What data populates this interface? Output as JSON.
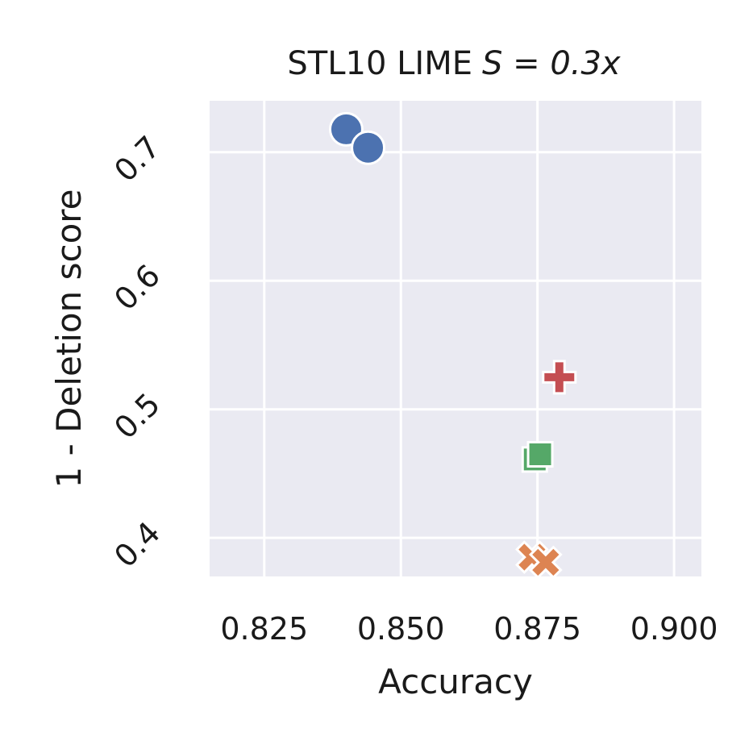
{
  "chart_data": {
    "type": "scatter",
    "title": "STL10 LIME",
    "title_formula": "S = 0.3x",
    "xlabel": "Accuracy",
    "ylabel": "1 - Deletion score",
    "xlim": [
      0.815,
      0.905
    ],
    "ylim": [
      0.37,
      0.74
    ],
    "xticks": [
      "0.825",
      "0.850",
      "0.875",
      "0.900"
    ],
    "yticks": [
      "0.4",
      "0.5",
      "0.6",
      "0.7"
    ],
    "grid": true,
    "background": "#eaeaf2",
    "gridColor": "#ffffff",
    "series": [
      {
        "marker": "circle",
        "color": "#4c72b0",
        "points": [
          {
            "x": 0.84,
            "y": 0.7178
          },
          {
            "x": 0.844,
            "y": 0.7035
          }
        ]
      },
      {
        "marker": "x",
        "color": "#dd8452",
        "points": [
          {
            "x": 0.874,
            "y": 0.385
          },
          {
            "x": 0.8765,
            "y": 0.381
          }
        ]
      },
      {
        "marker": "square",
        "color": "#55a868",
        "points": [
          {
            "x": 0.8745,
            "y": 0.461
          },
          {
            "x": 0.8755,
            "y": 0.465
          }
        ]
      },
      {
        "marker": "plus",
        "color": "#c44e52",
        "points": [
          {
            "x": 0.879,
            "y": 0.525
          }
        ]
      }
    ]
  }
}
